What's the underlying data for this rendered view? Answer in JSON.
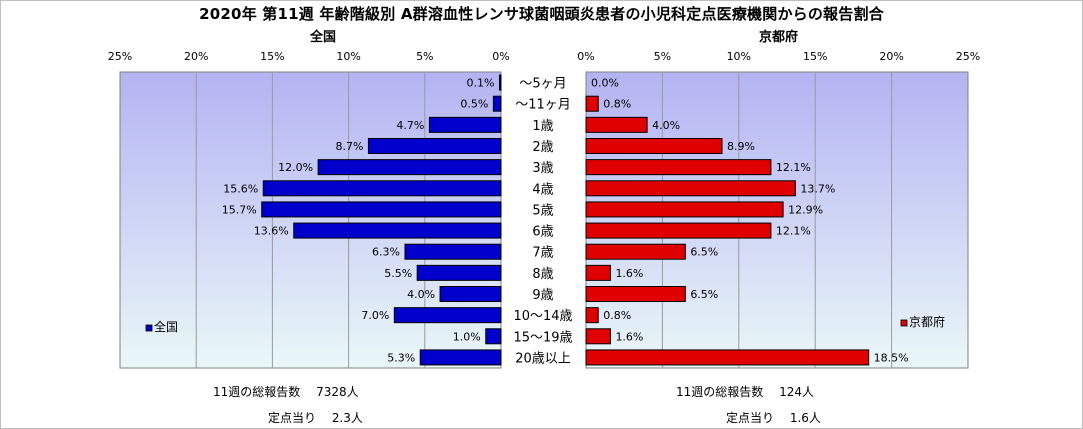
{
  "title": "2020年 第11週 年齢階級別 A群溶血性レンサ球菌咽頭炎患者の小児科定点医療機関からの報告割合",
  "left_footer": {
    "total": "11週の総報告数　 7328人",
    "per_site": "定点当り　 2.3人"
  },
  "right_footer": {
    "total": "11週の総報告数　 124人",
    "per_site": "定点当り　 1.6人"
  },
  "colors": {
    "national": "#0000cc",
    "kyoto": "#e00000",
    "plot_bg_top": "#b3b3f2",
    "plot_bg_bottom": "#e9f7f7"
  },
  "chart_data": [
    {
      "type": "bar",
      "title": "全国",
      "orientation": "horizontal",
      "direction": "right-to-left",
      "xlim": [
        0,
        25
      ],
      "x_ticks": [
        "25%",
        "20%",
        "15%",
        "10%",
        "5%",
        "0%"
      ],
      "categories": [
        "～5ヶ月",
        "～11ヶ月",
        "1歳",
        "2歳",
        "3歳",
        "4歳",
        "5歳",
        "6歳",
        "7歳",
        "8歳",
        "9歳",
        "10～14歳",
        "15～19歳",
        "20歳以上"
      ],
      "series": [
        {
          "name": "全国",
          "values": [
            0.1,
            0.5,
            4.7,
            8.7,
            12.0,
            15.6,
            15.7,
            13.6,
            6.3,
            5.5,
            4.0,
            7.0,
            1.0,
            5.3
          ],
          "labels": [
            "0.1%",
            "0.5%",
            "4.7%",
            "8.7%",
            "12.0%",
            "15.6%",
            "15.7%",
            "13.6%",
            "6.3%",
            "5.5%",
            "4.0%",
            "7.0%",
            "1.0%",
            "5.3%"
          ]
        }
      ],
      "legend": "bottom-left",
      "grid": true
    },
    {
      "type": "bar",
      "title": "京都府",
      "orientation": "horizontal",
      "direction": "left-to-right",
      "xlim": [
        0,
        25
      ],
      "x_ticks": [
        "0%",
        "5%",
        "10%",
        "15%",
        "20%",
        "25%"
      ],
      "categories": [
        "～5ヶ月",
        "～11ヶ月",
        "1歳",
        "2歳",
        "3歳",
        "4歳",
        "5歳",
        "6歳",
        "7歳",
        "8歳",
        "9歳",
        "10～14歳",
        "15～19歳",
        "20歳以上"
      ],
      "series": [
        {
          "name": "京都府",
          "values": [
            0.0,
            0.8,
            4.0,
            8.9,
            12.1,
            13.7,
            12.9,
            12.1,
            6.5,
            1.6,
            6.5,
            0.8,
            1.6,
            18.5
          ],
          "labels": [
            "0.0%",
            "0.8%",
            "4.0%",
            "8.9%",
            "12.1%",
            "13.7%",
            "12.9%",
            "12.1%",
            "6.5%",
            "1.6%",
            "6.5%",
            "0.8%",
            "1.6%",
            "18.5%"
          ]
        }
      ],
      "legend": "bottom-right",
      "grid": true
    }
  ]
}
